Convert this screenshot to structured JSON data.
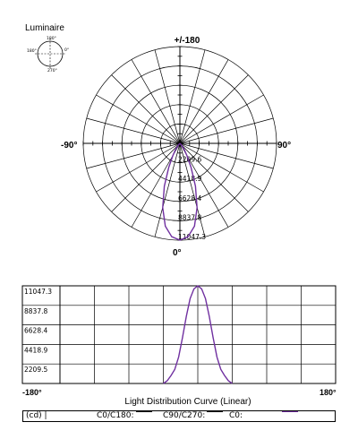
{
  "header": {
    "title": "Luminaire"
  },
  "icon_labels": {
    "top": "180°",
    "left": "180°",
    "right": "0°",
    "bottom": "270°"
  },
  "chart_data": [
    {
      "type": "polar",
      "angle_labels": {
        "top": "+/-180",
        "left": "-90°",
        "right": "90°",
        "bottom": "0°"
      },
      "radial_ticks": [
        "2209.6",
        "4418.9",
        "6628.4",
        "8837.8",
        "11047.3"
      ],
      "rmax": 11047.3,
      "series": [
        {
          "name": "C0/C180",
          "color": "#7030a0",
          "points": [
            [
              -45,
              0
            ],
            [
              -40,
              300
            ],
            [
              -35,
              900
            ],
            [
              -30,
              1600
            ],
            [
              -25,
              3000
            ],
            [
              -20,
              5200
            ],
            [
              -15,
              7600
            ],
            [
              -10,
              9600
            ],
            [
              -5,
              10700
            ],
            [
              0,
              11047.3
            ],
            [
              5,
              10700
            ],
            [
              10,
              9600
            ],
            [
              15,
              7600
            ],
            [
              20,
              5200
            ],
            [
              25,
              3000
            ],
            [
              30,
              1600
            ],
            [
              35,
              900
            ],
            [
              40,
              300
            ],
            [
              45,
              0
            ]
          ]
        }
      ]
    },
    {
      "type": "line",
      "xlabel": "Light Distribution Curve (Linear)",
      "x_tick_labels": [
        "-180°",
        "180°"
      ],
      "xlim": [
        -180,
        180
      ],
      "ylim": [
        0,
        11047.3
      ],
      "y_tick_labels": [
        "11047.3",
        "8837.8",
        "6628.4",
        "4418.9",
        "2209.5"
      ],
      "series": [
        {
          "name": "C0/C180",
          "color": "#7030a0",
          "points": [
            [
              -45,
              0
            ],
            [
              -40,
              300
            ],
            [
              -35,
              900
            ],
            [
              -30,
              1600
            ],
            [
              -25,
              3000
            ],
            [
              -20,
              5200
            ],
            [
              -15,
              7600
            ],
            [
              -10,
              9600
            ],
            [
              -5,
              10700
            ],
            [
              0,
              11047.3
            ],
            [
              5,
              10700
            ],
            [
              10,
              9600
            ],
            [
              15,
              7600
            ],
            [
              20,
              5200
            ],
            [
              25,
              3000
            ],
            [
              30,
              1600
            ],
            [
              35,
              900
            ],
            [
              40,
              300
            ],
            [
              45,
              0
            ]
          ]
        }
      ]
    }
  ],
  "legend": {
    "unit": "(cd) |",
    "c0c180": "C0/C180:",
    "c90c270": "C90/C270:",
    "c0": "C0:",
    "colors": {
      "c0c180": "#000000",
      "c90c270": "#000000",
      "c0": "#7030a0"
    }
  }
}
